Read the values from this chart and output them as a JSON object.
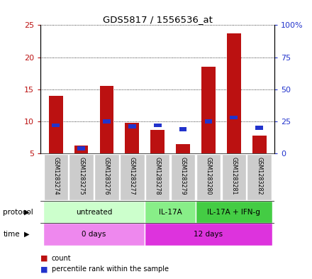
{
  "title": "GDS5817 / 1556536_at",
  "samples": [
    "GSM1283274",
    "GSM1283275",
    "GSM1283276",
    "GSM1283277",
    "GSM1283278",
    "GSM1283279",
    "GSM1283280",
    "GSM1283281",
    "GSM1283282"
  ],
  "count_values": [
    14.0,
    6.2,
    15.5,
    9.8,
    8.7,
    6.5,
    18.5,
    23.7,
    7.8
  ],
  "percentile_values": [
    22,
    4,
    25,
    21,
    22,
    19,
    25,
    28,
    20
  ],
  "bar_bottom": 5.0,
  "ylim_left": [
    5,
    25
  ],
  "ylim_right": [
    0,
    100
  ],
  "yticks_left": [
    5,
    10,
    15,
    20,
    25
  ],
  "yticks_right": [
    0,
    25,
    50,
    75,
    100
  ],
  "ytick_labels_left": [
    "5",
    "10",
    "15",
    "20",
    "25"
  ],
  "ytick_labels_right": [
    "0",
    "25",
    "50",
    "75",
    "100%"
  ],
  "count_color": "#bb1111",
  "percentile_color": "#2233cc",
  "protocol_groups": [
    {
      "label": "untreated",
      "start": 0,
      "end": 4,
      "color": "#ccffcc"
    },
    {
      "label": "IL-17A",
      "start": 4,
      "end": 6,
      "color": "#88ee88"
    },
    {
      "label": "IL-17A + IFN-g",
      "start": 6,
      "end": 9,
      "color": "#44cc44"
    }
  ],
  "time_groups": [
    {
      "label": "0 days",
      "start": 0,
      "end": 4,
      "color": "#ee88ee"
    },
    {
      "label": "12 days",
      "start": 4,
      "end": 9,
      "color": "#dd33dd"
    }
  ],
  "sample_bg_color": "#cccccc",
  "legend_count": "count",
  "legend_pct": "percentile rank within the sample",
  "bar_width": 0.55
}
